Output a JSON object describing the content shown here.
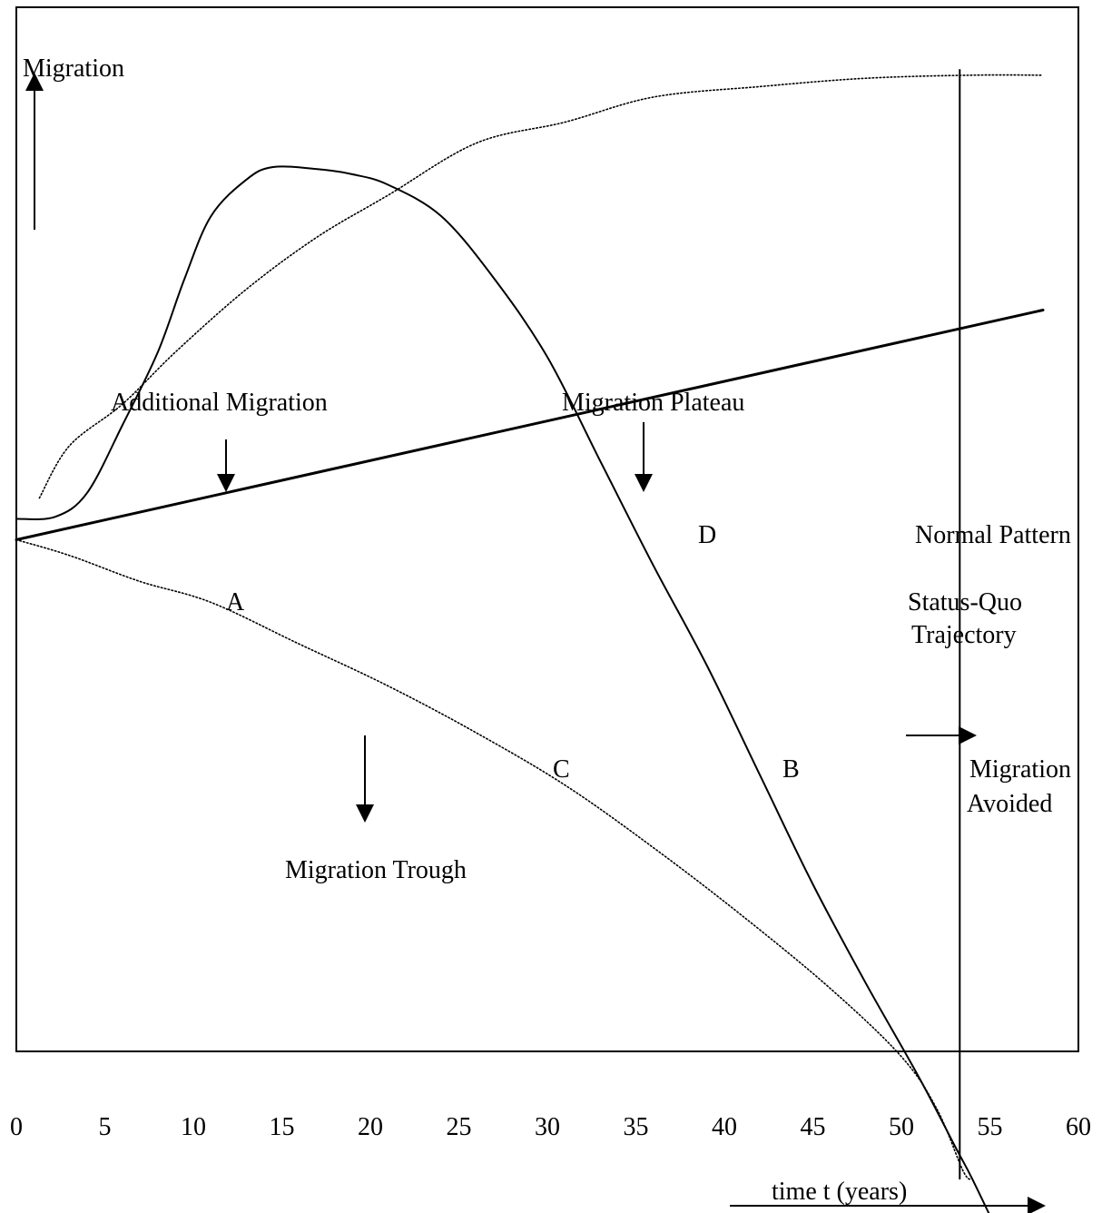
{
  "chart_data": {
    "type": "line",
    "title": "",
    "ylabel": "Migration",
    "xlabel": "time t (years)",
    "xlim": [
      0,
      60
    ],
    "x_ticks": [
      "0",
      "5",
      "10",
      "15",
      "20",
      "25",
      "30",
      "35",
      "40",
      "45",
      "50",
      "55",
      "60"
    ],
    "y_axis_numeric": false,
    "curves": [
      {
        "id": "status_quo",
        "style": "solid-thick",
        "points": [
          [
            0,
            0.49
          ],
          [
            58,
            0.71
          ]
        ]
      },
      {
        "id": "migration_plateau_curve",
        "style": "dotted",
        "points": [
          [
            1.3,
            0.53
          ],
          [
            3,
            0.58
          ],
          [
            6,
            0.62
          ],
          [
            9,
            0.67
          ],
          [
            13,
            0.73
          ],
          [
            17,
            0.78
          ],
          [
            21,
            0.82
          ],
          [
            26,
            0.87
          ],
          [
            31,
            0.89
          ],
          [
            36,
            0.914
          ],
          [
            42,
            0.924
          ],
          [
            48,
            0.932
          ],
          [
            54,
            0.935
          ],
          [
            58,
            0.935
          ]
        ]
      },
      {
        "id": "additional_migration_curve",
        "style": "solid",
        "points": [
          [
            0,
            0.51
          ],
          [
            2.2,
            0.512
          ],
          [
            4,
            0.535
          ],
          [
            6,
            0.6
          ],
          [
            8,
            0.67
          ],
          [
            9.5,
            0.74
          ],
          [
            11,
            0.8
          ],
          [
            13,
            0.835
          ],
          [
            14.5,
            0.847
          ],
          [
            17,
            0.845
          ],
          [
            19,
            0.84
          ],
          [
            21,
            0.83
          ],
          [
            24,
            0.8
          ],
          [
            27,
            0.74
          ],
          [
            30,
            0.665
          ],
          [
            33,
            0.565
          ],
          [
            36,
            0.465
          ],
          [
            39,
            0.37
          ],
          [
            42,
            0.265
          ],
          [
            45,
            0.16
          ],
          [
            48,
            0.065
          ],
          [
            51,
            -0.025
          ],
          [
            53,
            -0.09
          ],
          [
            54,
            -0.122
          ],
          [
            55.5,
            -0.175
          ]
        ]
      },
      {
        "id": "migration_trough_curve",
        "style": "dotted",
        "points": [
          [
            0,
            0.49
          ],
          [
            3,
            0.475
          ],
          [
            7,
            0.45
          ],
          [
            11,
            0.43
          ],
          [
            16,
            0.39
          ],
          [
            21,
            0.35
          ],
          [
            26,
            0.305
          ],
          [
            31,
            0.255
          ],
          [
            36,
            0.195
          ],
          [
            41,
            0.13
          ],
          [
            46,
            0.06
          ],
          [
            50,
            -0.005
          ],
          [
            52,
            -0.055
          ],
          [
            53.5,
            -0.115
          ],
          [
            54,
            -0.122
          ]
        ]
      },
      {
        "id": "migration_avoided_line",
        "style": "solid-vertical",
        "points": [
          [
            53.3,
            -0.122
          ],
          [
            53.3,
            0.94
          ]
        ]
      }
    ],
    "annotations": {
      "additional_migration": "Additional Migration",
      "migration_plateau": "Migration Plateau",
      "migration_trough": "Migration Trough",
      "normal_pattern": "Normal Pattern",
      "status_quo_line1": "Status-Quo",
      "status_quo_line2": "Trajectory",
      "migration_avoided_line1": "Migration",
      "migration_avoided_line2": "Avoided",
      "region_a": "A",
      "region_b": "B",
      "region_c": "C",
      "region_d": "D"
    },
    "grid": false,
    "legend": "none"
  }
}
